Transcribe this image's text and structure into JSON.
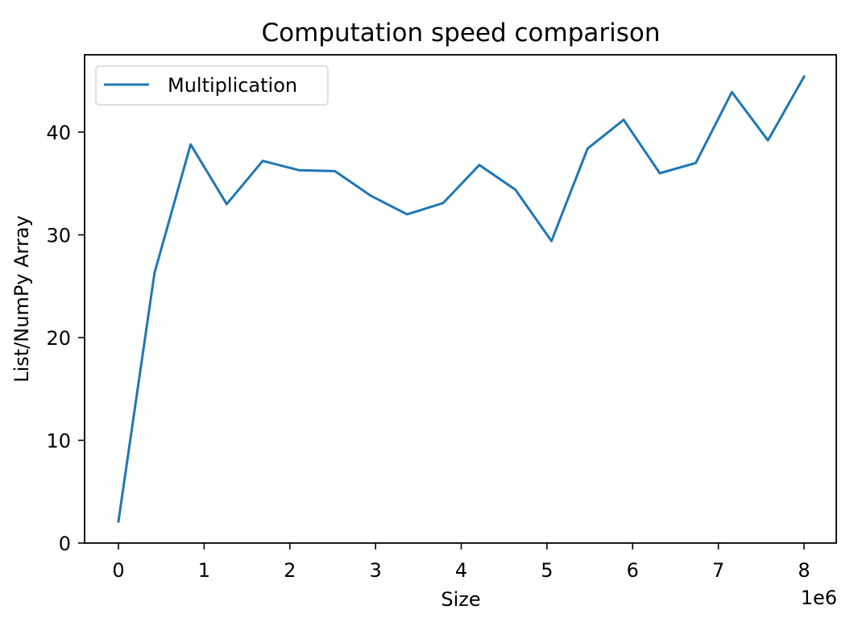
{
  "chart_data": {
    "type": "line",
    "title": "Computation speed comparison",
    "xlabel": "Size",
    "ylabel": "List/NumPy Array",
    "x_offset_label": "1e6",
    "x_scale": 1000000,
    "xlim": [
      -0.4,
      8.4
    ],
    "ylim": [
      0,
      47.5
    ],
    "xticks": [
      0,
      1,
      2,
      3,
      4,
      5,
      6,
      7,
      8
    ],
    "xtick_labels": [
      "0",
      "1",
      "2",
      "3",
      "4",
      "5",
      "6",
      "7",
      "8"
    ],
    "yticks": [
      0,
      10,
      20,
      30,
      40
    ],
    "ytick_labels": [
      "0",
      "10",
      "20",
      "30",
      "40"
    ],
    "grid": false,
    "legend": {
      "position": "upper left",
      "entries": [
        "Multiplication"
      ]
    },
    "series": [
      {
        "name": "Multiplication",
        "color": "#1f77b4",
        "x": [
          0,
          0.421,
          0.842,
          1.263,
          1.684,
          2.105,
          2.526,
          2.947,
          3.368,
          3.789,
          4.211,
          4.632,
          5.053,
          5.474,
          5.895,
          6.316,
          6.737,
          7.158,
          7.579,
          8.0
        ],
        "values": [
          2.1,
          26.3,
          38.8,
          33.0,
          37.2,
          36.3,
          36.2,
          33.8,
          32.0,
          33.1,
          36.8,
          34.4,
          29.4,
          38.4,
          41.2,
          36.0,
          37.0,
          43.9,
          39.2,
          45.4
        ]
      }
    ]
  }
}
